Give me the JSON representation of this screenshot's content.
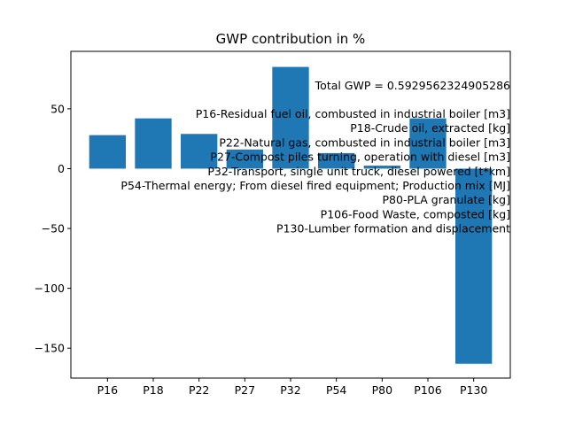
{
  "chart_data": {
    "type": "bar",
    "title": "GWP contribution in %",
    "xlabel": "",
    "ylabel": "",
    "categories": [
      "P16",
      "P18",
      "P22",
      "P27",
      "P32",
      "P54",
      "P80",
      "P106",
      "P130"
    ],
    "values": [
      28,
      42,
      29,
      16,
      85,
      13,
      2.5,
      42,
      -163
    ],
    "ylim": [
      -175,
      98
    ],
    "yticks": [
      50,
      0,
      -50,
      -100,
      -150
    ],
    "ytick_labels": [
      "50",
      "0",
      "−50",
      "−100",
      "−150"
    ],
    "bar_color": "#1f77b4",
    "grid": false,
    "annotations": [
      "Total GWP = 0.5929562324905286",
      "P16-Residual fuel oil, combusted in industrial boiler [m3]",
      "P18-Crude oil, extracted [kg]",
      "P22-Natural gas, combusted in industrial boiler [m3]",
      "P27-Compost piles turning, operation with diesel [m3]",
      "P32-Transport, single unit truck, diesel powered [t*km]",
      "P54-Thermal energy; From diesel fired equipment; Production mix [MJ]",
      "P80-PLA granulate [kg]",
      "P106-Food Waste, composted [kg]",
      "P130-Lumber formation and displacement"
    ]
  }
}
